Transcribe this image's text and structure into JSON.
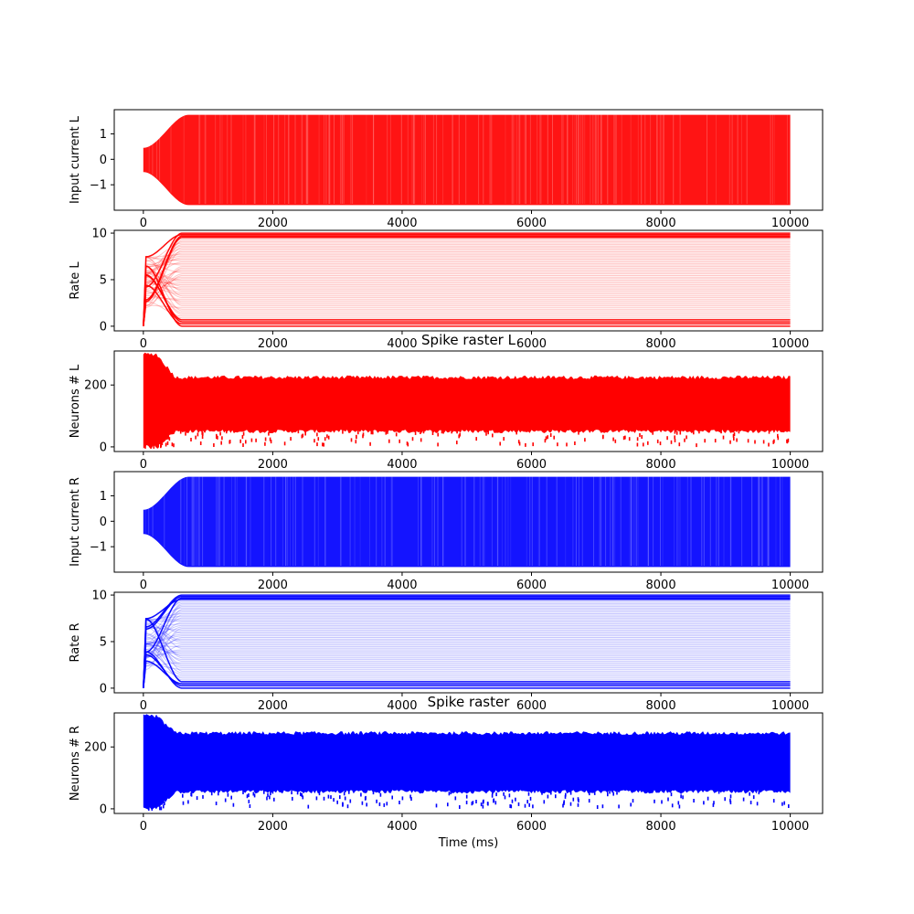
{
  "chart_data": [
    {
      "type": "line",
      "color": "#ff0000",
      "title": "",
      "xlabel": "",
      "ylabel": "Input current L",
      "xlim": [
        -450,
        10500
      ],
      "ylim": [
        -2.0,
        1.95
      ],
      "xticks": [
        0,
        2000,
        4000,
        6000,
        8000,
        10000
      ],
      "xticklabels": [
        "0",
        "2000",
        "4000",
        "6000",
        "8000",
        "10000"
      ],
      "yticks": [
        -1,
        0,
        1
      ],
      "yticklabels": [
        "−1",
        "0",
        "1"
      ],
      "envelope": {
        "start_half_width": 0.45,
        "settle_time": 700,
        "plateau": 1.75,
        "t_end": 10000
      }
    },
    {
      "type": "line",
      "color": "#ff0000",
      "title": "",
      "xlabel": "",
      "ylabel": "Rate L",
      "xlim": [
        -450,
        10500
      ],
      "ylim": [
        -0.5,
        10.3
      ],
      "xticks": [
        0,
        2000,
        4000,
        6000,
        8000,
        10000
      ],
      "xticklabels": [
        "0",
        "2000",
        "4000",
        "6000",
        "8000",
        "10000"
      ],
      "yticks": [
        0,
        5,
        10
      ],
      "yticklabels": [
        "0",
        "5",
        "10"
      ],
      "range": {
        "min": 0,
        "max": 10,
        "settle_time": 600,
        "t_end": 10000
      }
    },
    {
      "type": "scatter",
      "color": "#ff0000",
      "title": "Spike raster L",
      "xlabel": "",
      "ylabel": "Neurons # L",
      "xlim": [
        -450,
        10500
      ],
      "ylim": [
        -15,
        310
      ],
      "xticks": [
        0,
        2000,
        4000,
        6000,
        8000,
        10000
      ],
      "xticklabels": [
        "0",
        "2000",
        "4000",
        "6000",
        "8000",
        "10000"
      ],
      "yticks": [
        0,
        200
      ],
      "yticklabels": [
        "0",
        "200"
      ],
      "neurons": 300,
      "band": {
        "initial": [
          0,
          300
        ],
        "steady": [
          50,
          225
        ],
        "settle_time": 500,
        "t_end": 10000
      }
    },
    {
      "type": "line",
      "color": "#0000ff",
      "title": "",
      "xlabel": "",
      "ylabel": "Input current R",
      "xlim": [
        -450,
        10500
      ],
      "ylim": [
        -2.0,
        1.95
      ],
      "xticks": [
        0,
        2000,
        4000,
        6000,
        8000,
        10000
      ],
      "xticklabels": [
        "0",
        "2000",
        "4000",
        "6000",
        "8000",
        "10000"
      ],
      "yticks": [
        -1,
        0,
        1
      ],
      "yticklabels": [
        "−1",
        "0",
        "1"
      ],
      "envelope": {
        "start_half_width": 0.45,
        "settle_time": 700,
        "plateau": 1.75,
        "t_end": 10000
      }
    },
    {
      "type": "line",
      "color": "#0000ff",
      "title": "",
      "xlabel": "",
      "ylabel": "Rate R",
      "xlim": [
        -450,
        10500
      ],
      "ylim": [
        -0.5,
        10.3
      ],
      "xticks": [
        0,
        2000,
        4000,
        6000,
        8000,
        10000
      ],
      "xticklabels": [
        "0",
        "2000",
        "4000",
        "6000",
        "8000",
        "10000"
      ],
      "yticks": [
        0,
        5,
        10
      ],
      "yticklabels": [
        "0",
        "5",
        "10"
      ],
      "range": {
        "min": 0,
        "max": 10,
        "settle_time": 600,
        "t_end": 10000
      }
    },
    {
      "type": "scatter",
      "color": "#0000ff",
      "title": "Spike raster",
      "xlabel": "Time (ms)",
      "ylabel": "Neurons # R",
      "xlim": [
        -450,
        10500
      ],
      "ylim": [
        -15,
        310
      ],
      "xticks": [
        0,
        2000,
        4000,
        6000,
        8000,
        10000
      ],
      "xticklabels": [
        "0",
        "2000",
        "4000",
        "6000",
        "8000",
        "10000"
      ],
      "yticks": [
        0,
        200
      ],
      "yticklabels": [
        "0",
        "200"
      ],
      "neurons": 300,
      "band": {
        "initial": [
          0,
          300
        ],
        "steady": [
          55,
          245
        ],
        "settle_time": 500,
        "t_end": 10000
      }
    }
  ]
}
